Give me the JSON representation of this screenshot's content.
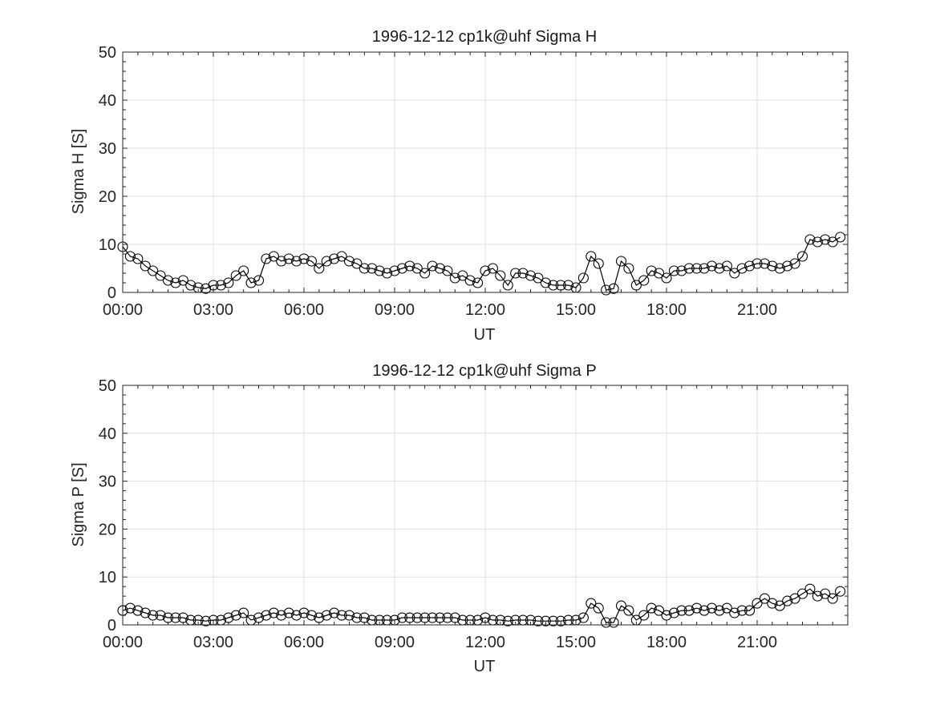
{
  "chart_data": [
    {
      "type": "line",
      "title": "1996-12-12  cp1k@uhf Sigma H",
      "xlabel": "UT",
      "ylabel": "Sigma H [S]",
      "xlim": [
        0,
        24
      ],
      "ylim": [
        0,
        50
      ],
      "xticks": [
        0,
        3,
        6,
        9,
        12,
        15,
        18,
        21
      ],
      "xtick_labels": [
        "00:00",
        "03:00",
        "06:00",
        "09:00",
        "12:00",
        "15:00",
        "18:00",
        "21:00"
      ],
      "yticks": [
        0,
        10,
        20,
        30,
        40,
        50
      ],
      "ytick_labels": [
        "0",
        "10",
        "20",
        "30",
        "40",
        "50"
      ],
      "grid": true,
      "marker": "open-circle",
      "color": "#000000",
      "series": [
        {
          "x": [
            0.0,
            0.25,
            0.5,
            0.75,
            1.0,
            1.25,
            1.5,
            1.75,
            2.0,
            2.25,
            2.5,
            2.75,
            3.0,
            3.25,
            3.5,
            3.75,
            4.0,
            4.25,
            4.5,
            4.75,
            5.0,
            5.25,
            5.5,
            5.75,
            6.0,
            6.25,
            6.5,
            6.75,
            7.0,
            7.25,
            7.5,
            7.75,
            8.0,
            8.25,
            8.5,
            8.75,
            9.0,
            9.25,
            9.5,
            9.75,
            10.0,
            10.25,
            10.5,
            10.75,
            11.0,
            11.25,
            11.5,
            11.75,
            12.0,
            12.25,
            12.5,
            12.75,
            13.0,
            13.25,
            13.5,
            13.75,
            14.0,
            14.25,
            14.5,
            14.75,
            15.0,
            15.25,
            15.5,
            15.75,
            16.0,
            16.25,
            16.5,
            16.75,
            17.0,
            17.25,
            17.5,
            17.75,
            18.0,
            18.25,
            18.5,
            18.75,
            19.0,
            19.25,
            19.5,
            19.75,
            20.0,
            20.25,
            20.5,
            20.75,
            21.0,
            21.25,
            21.5,
            21.75,
            22.0,
            22.25,
            22.5,
            22.75,
            23.0,
            23.25,
            23.5,
            23.75
          ],
          "y": [
            9.5,
            7.5,
            7.0,
            5.5,
            4.5,
            3.5,
            2.5,
            2.0,
            2.5,
            1.5,
            1.0,
            0.8,
            1.5,
            1.5,
            2.0,
            3.5,
            4.5,
            2.0,
            2.5,
            7.0,
            7.5,
            6.5,
            7.0,
            6.5,
            7.0,
            6.5,
            5.0,
            6.5,
            7.0,
            7.5,
            6.5,
            6.0,
            5.0,
            5.0,
            4.5,
            4.0,
            4.5,
            5.0,
            5.5,
            5.0,
            4.0,
            5.5,
            5.0,
            4.5,
            3.0,
            3.5,
            2.5,
            2.0,
            4.5,
            5.0,
            3.5,
            1.5,
            4.0,
            4.0,
            3.5,
            3.0,
            2.0,
            1.5,
            1.5,
            1.5,
            1.0,
            3.0,
            7.5,
            6.0,
            0.5,
            0.8,
            6.5,
            5.0,
            1.5,
            2.5,
            4.5,
            4.0,
            3.0,
            4.5,
            4.5,
            5.0,
            5.0,
            5.0,
            5.5,
            5.0,
            5.5,
            4.0,
            5.0,
            5.5,
            6.0,
            6.0,
            5.5,
            5.0,
            5.5,
            6.0,
            7.5,
            11.0,
            10.5,
            11.0,
            10.5,
            11.5
          ]
        }
      ]
    },
    {
      "type": "line",
      "title": "1996-12-12  cp1k@uhf Sigma P",
      "xlabel": "UT",
      "ylabel": "Sigma P [S]",
      "xlim": [
        0,
        24
      ],
      "ylim": [
        0,
        50
      ],
      "xticks": [
        0,
        3,
        6,
        9,
        12,
        15,
        18,
        21
      ],
      "xtick_labels": [
        "00:00",
        "03:00",
        "06:00",
        "09:00",
        "12:00",
        "15:00",
        "18:00",
        "21:00"
      ],
      "yticks": [
        0,
        10,
        20,
        30,
        40,
        50
      ],
      "ytick_labels": [
        "0",
        "10",
        "20",
        "30",
        "40",
        "50"
      ],
      "grid": true,
      "marker": "open-circle",
      "color": "#000000",
      "series": [
        {
          "x": [
            0.0,
            0.25,
            0.5,
            0.75,
            1.0,
            1.25,
            1.5,
            1.75,
            2.0,
            2.25,
            2.5,
            2.75,
            3.0,
            3.25,
            3.5,
            3.75,
            4.0,
            4.25,
            4.5,
            4.75,
            5.0,
            5.25,
            5.5,
            5.75,
            6.0,
            6.25,
            6.5,
            6.75,
            7.0,
            7.25,
            7.5,
            7.75,
            8.0,
            8.25,
            8.5,
            8.75,
            9.0,
            9.25,
            9.5,
            9.75,
            10.0,
            10.25,
            10.5,
            10.75,
            11.0,
            11.25,
            11.5,
            11.75,
            12.0,
            12.25,
            12.5,
            12.75,
            13.0,
            13.25,
            13.5,
            13.75,
            14.0,
            14.25,
            14.5,
            14.75,
            15.0,
            15.25,
            15.5,
            15.75,
            16.0,
            16.25,
            16.5,
            16.75,
            17.0,
            17.25,
            17.5,
            17.75,
            18.0,
            18.25,
            18.5,
            18.75,
            19.0,
            19.25,
            19.5,
            19.75,
            20.0,
            20.25,
            20.5,
            20.75,
            21.0,
            21.25,
            21.5,
            21.75,
            22.0,
            22.25,
            22.5,
            22.75,
            23.0,
            23.25,
            23.5,
            23.75
          ],
          "y": [
            3.0,
            3.5,
            3.0,
            2.5,
            2.0,
            2.0,
            1.5,
            1.5,
            1.5,
            1.0,
            1.0,
            0.8,
            1.0,
            1.0,
            1.5,
            2.0,
            2.5,
            1.0,
            1.5,
            2.0,
            2.5,
            2.0,
            2.5,
            2.0,
            2.5,
            2.0,
            1.5,
            2.0,
            2.5,
            2.0,
            2.0,
            1.5,
            1.5,
            1.0,
            1.0,
            1.0,
            1.0,
            1.5,
            1.5,
            1.5,
            1.5,
            1.5,
            1.5,
            1.5,
            1.5,
            1.0,
            1.0,
            1.0,
            1.5,
            1.0,
            1.0,
            0.8,
            1.0,
            1.0,
            1.0,
            0.8,
            0.8,
            0.8,
            0.8,
            1.0,
            1.0,
            1.5,
            4.5,
            3.5,
            0.5,
            0.5,
            4.0,
            3.0,
            1.0,
            2.0,
            3.5,
            3.0,
            2.0,
            2.5,
            3.0,
            3.0,
            3.5,
            3.0,
            3.5,
            3.0,
            3.5,
            2.5,
            3.0,
            3.0,
            4.5,
            5.5,
            4.5,
            4.0,
            5.0,
            5.5,
            6.5,
            7.5,
            6.0,
            6.5,
            5.5,
            7.0
          ]
        }
      ]
    }
  ]
}
